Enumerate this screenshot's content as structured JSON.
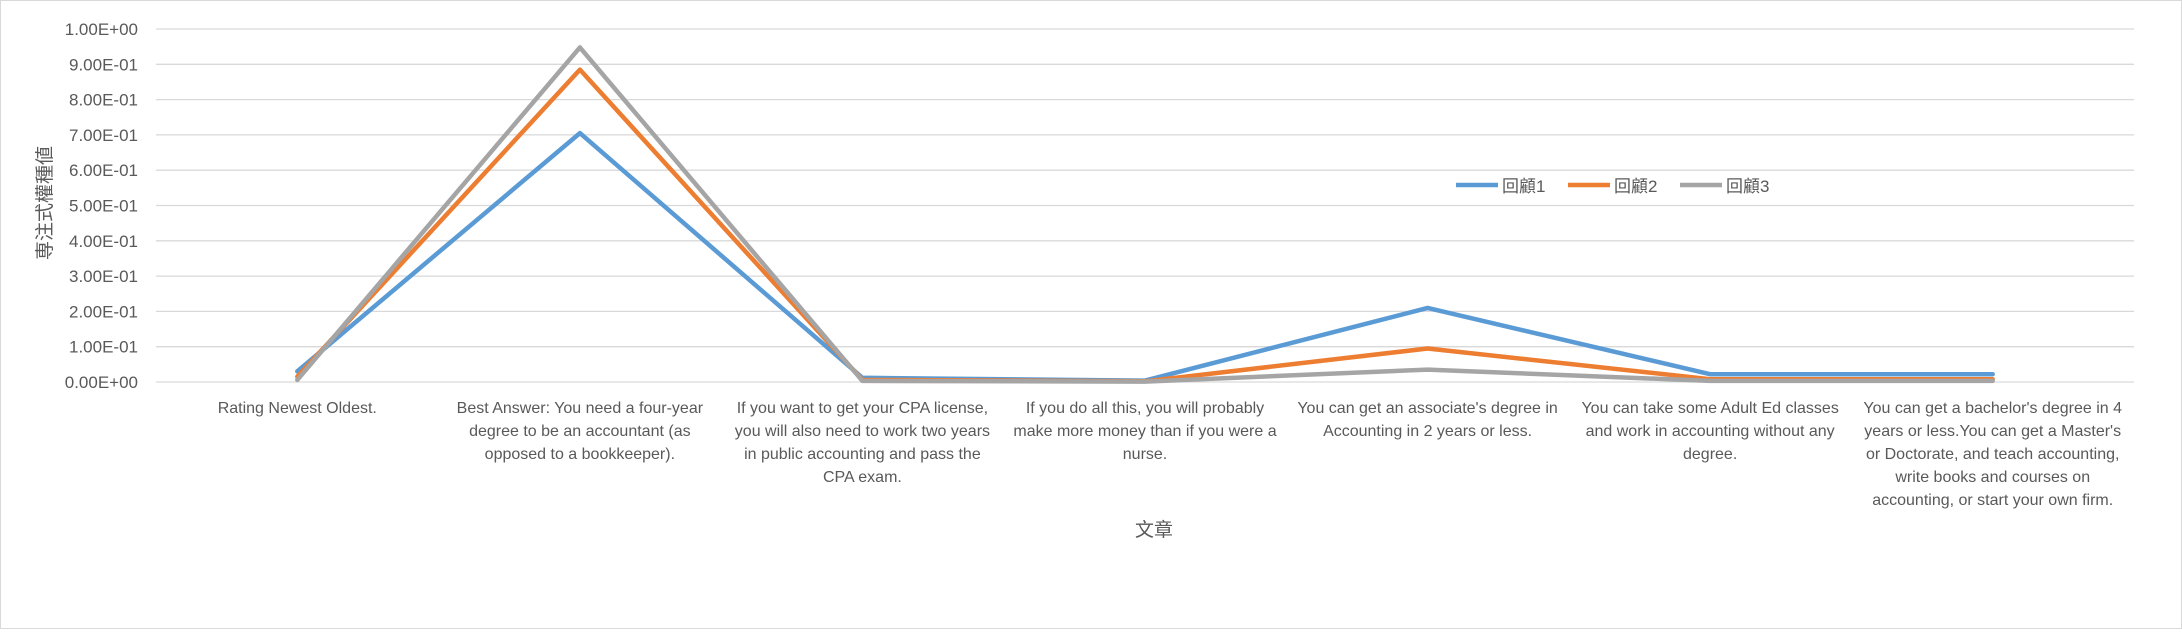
{
  "chart_data": {
    "type": "line",
    "title": "",
    "xlabel": "文章",
    "ylabel": "専注式權種値",
    "ylim": [
      0,
      1.0
    ],
    "yticks": [
      "0.00E+00",
      "1.00E-01",
      "2.00E-01",
      "3.00E-01",
      "4.00E-01",
      "5.00E-01",
      "6.00E-01",
      "7.00E-01",
      "8.00E-01",
      "9.00E-01",
      "1.00E+00"
    ],
    "grid": true,
    "legend_position": "right",
    "categories": [
      "Rating Newest Oldest.",
      "Best Answer: You need a four-year degree to be an accountant (as opposed to a bookkeeper).",
      "If you want to get your CPA license, you will also need to work two years in public accounting and pass the CPA exam.",
      "If you do all this, you will probably make more money than if you were a nurse.",
      "You can get an associate's degree in Accounting in 2 years or less.",
      "You can take some Adult Ed classes and work in accounting without any degree.",
      "You can get a bachelor's degree in 4 years or less.You can get a Master's or Doctorate, and teach accounting, write books and courses on accounting, or start your own firm."
    ],
    "category_lines": [
      [
        "Rating Newest Oldest."
      ],
      [
        "Best Answer: You need a four-year",
        "degree to be an accountant (as",
        "opposed to a bookkeeper)."
      ],
      [
        "If you want to get your CPA license,",
        "you will also need to work two years",
        "in public accounting and pass the",
        "CPA exam."
      ],
      [
        "If you do all this, you will probably",
        "make more money than if you were a",
        "nurse."
      ],
      [
        "You can get an associate's degree in",
        "Accounting in 2 years or less."
      ],
      [
        "You can take some Adult Ed classes",
        "and work in accounting without any",
        "degree."
      ],
      [
        "You can get a bachelor's degree in 4",
        "years or less.You can get a Master's",
        "or Doctorate, and teach accounting,",
        "write books and courses on",
        "accounting, or start your own firm."
      ]
    ],
    "series": [
      {
        "name": "回顧1",
        "color": "#5b9bd5",
        "values": [
          0.03,
          0.705,
          0.012,
          0.004,
          0.21,
          0.022,
          0.022
        ]
      },
      {
        "name": "回顧2",
        "color": "#ed7d31",
        "values": [
          0.015,
          0.885,
          0.006,
          0.002,
          0.095,
          0.008,
          0.008
        ]
      },
      {
        "name": "回顧3",
        "color": "#a5a5a5",
        "values": [
          0.006,
          0.948,
          0.003,
          0.001,
          0.035,
          0.003,
          0.003
        ]
      }
    ]
  }
}
